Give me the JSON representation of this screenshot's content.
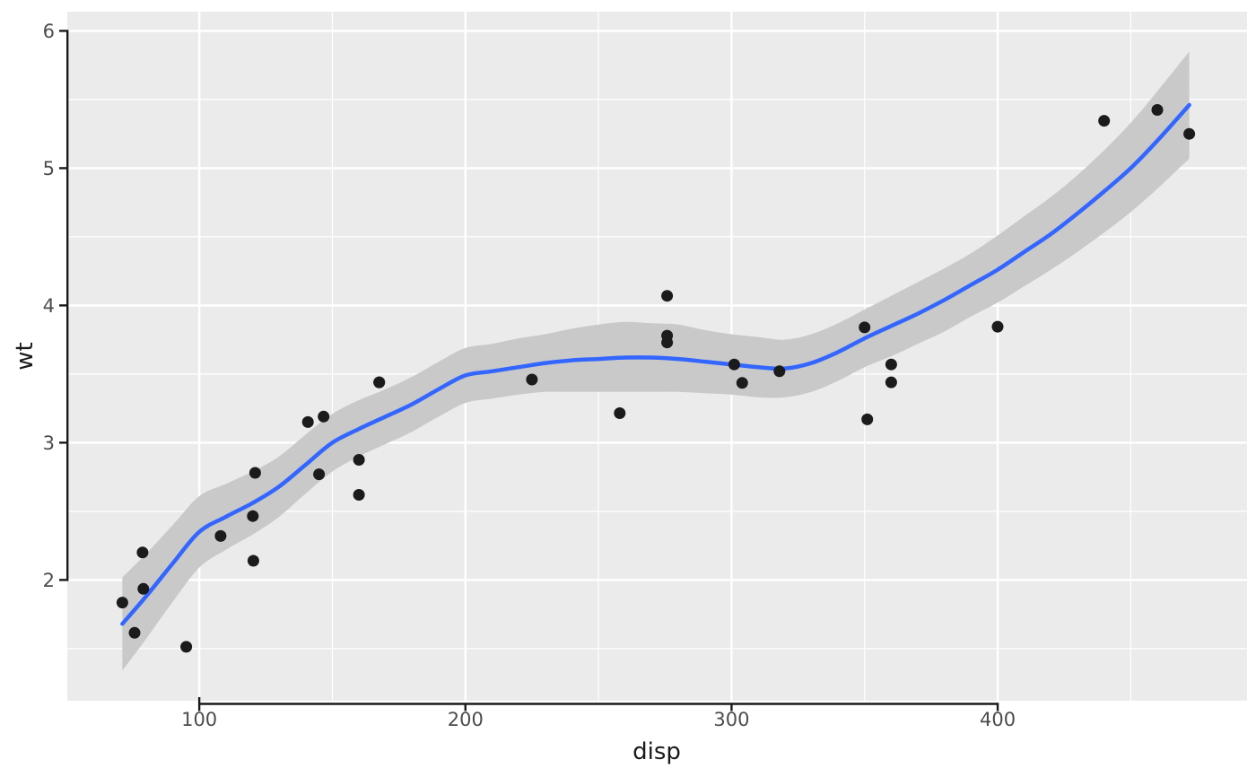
{
  "chart_data": {
    "type": "scatter",
    "title": "",
    "xlabel": "disp",
    "ylabel": "wt",
    "legend": "none",
    "grid": "on",
    "xlim": [
      50.4,
      493.7
    ],
    "ylim": [
      1.12,
      6.14
    ],
    "x_ticks": {
      "values": [
        100,
        200,
        300,
        400
      ],
      "labels": [
        "100",
        "200",
        "300",
        "400"
      ]
    },
    "y_ticks": {
      "values": [
        2,
        3,
        4,
        5,
        6
      ],
      "labels": [
        "2",
        "3",
        "4",
        "5",
        "6"
      ]
    },
    "x_minor_ticks": [
      150,
      250,
      350,
      450
    ],
    "y_minor_ticks": [
      1.5,
      2.5,
      3.5,
      4.5,
      5.5
    ],
    "points": [
      [
        160.0,
        2.62
      ],
      [
        160.0,
        2.875
      ],
      [
        108.0,
        2.32
      ],
      [
        258.0,
        3.215
      ],
      [
        360.0,
        3.44
      ],
      [
        225.0,
        3.46
      ],
      [
        360.0,
        3.57
      ],
      [
        146.7,
        3.19
      ],
      [
        140.8,
        3.15
      ],
      [
        167.6,
        3.44
      ],
      [
        167.6,
        3.44
      ],
      [
        275.8,
        4.07
      ],
      [
        275.8,
        3.73
      ],
      [
        275.8,
        3.78
      ],
      [
        472.0,
        5.25
      ],
      [
        460.0,
        5.424
      ],
      [
        440.0,
        5.345
      ],
      [
        78.7,
        2.2
      ],
      [
        75.7,
        1.615
      ],
      [
        71.1,
        1.835
      ],
      [
        120.1,
        2.465
      ],
      [
        318.0,
        3.52
      ],
      [
        304.0,
        3.435
      ],
      [
        350.0,
        3.84
      ],
      [
        400.0,
        3.845
      ],
      [
        79.0,
        1.935
      ],
      [
        120.3,
        2.14
      ],
      [
        95.1,
        1.513
      ],
      [
        351.0,
        3.17
      ],
      [
        145.0,
        2.77
      ],
      [
        301.0,
        3.57
      ],
      [
        121.0,
        2.78
      ]
    ],
    "smooth": {
      "method": "loess",
      "x": [
        71.1,
        80,
        90,
        100,
        110,
        120,
        130,
        140,
        150,
        160,
        170,
        180,
        190,
        200,
        210,
        220,
        230,
        240,
        250,
        260,
        270,
        280,
        290,
        300,
        310,
        320,
        330,
        340,
        350,
        360,
        370,
        380,
        390,
        400,
        410,
        420,
        430,
        440,
        450,
        460,
        472
      ],
      "fit": [
        1.68,
        1.88,
        2.12,
        2.35,
        2.46,
        2.56,
        2.68,
        2.84,
        3.0,
        3.1,
        3.19,
        3.28,
        3.39,
        3.49,
        3.52,
        3.55,
        3.58,
        3.6,
        3.61,
        3.62,
        3.62,
        3.61,
        3.59,
        3.57,
        3.55,
        3.54,
        3.58,
        3.66,
        3.76,
        3.85,
        3.94,
        4.04,
        4.15,
        4.26,
        4.39,
        4.52,
        4.67,
        4.83,
        5.0,
        5.2,
        5.46
      ],
      "lower": [
        1.34,
        1.57,
        1.84,
        2.09,
        2.22,
        2.33,
        2.46,
        2.63,
        2.79,
        2.9,
        2.99,
        3.08,
        3.19,
        3.29,
        3.32,
        3.35,
        3.37,
        3.37,
        3.37,
        3.37,
        3.37,
        3.37,
        3.36,
        3.35,
        3.33,
        3.33,
        3.37,
        3.45,
        3.55,
        3.63,
        3.72,
        3.81,
        3.92,
        4.02,
        4.14,
        4.26,
        4.39,
        4.53,
        4.68,
        4.85,
        5.07
      ],
      "upper": [
        2.02,
        2.19,
        2.4,
        2.61,
        2.7,
        2.79,
        2.9,
        3.06,
        3.21,
        3.31,
        3.39,
        3.48,
        3.59,
        3.69,
        3.72,
        3.76,
        3.79,
        3.83,
        3.86,
        3.88,
        3.87,
        3.86,
        3.82,
        3.79,
        3.77,
        3.75,
        3.79,
        3.87,
        3.97,
        4.07,
        4.17,
        4.27,
        4.38,
        4.51,
        4.65,
        4.79,
        4.95,
        5.13,
        5.33,
        5.56,
        5.85
      ]
    },
    "colors": {
      "background": "#FFFFFF",
      "panel": "#EBEBEB",
      "grid_major": "#FFFFFF",
      "grid_minor": "#FFFFFF",
      "band": "#C9C9C9",
      "line": "#3366FF",
      "point": "#1B1B1B",
      "axis_line": "#1A1A1A",
      "tick_label": "#4D4D4D",
      "axis_title": "#1A1A1A"
    }
  }
}
